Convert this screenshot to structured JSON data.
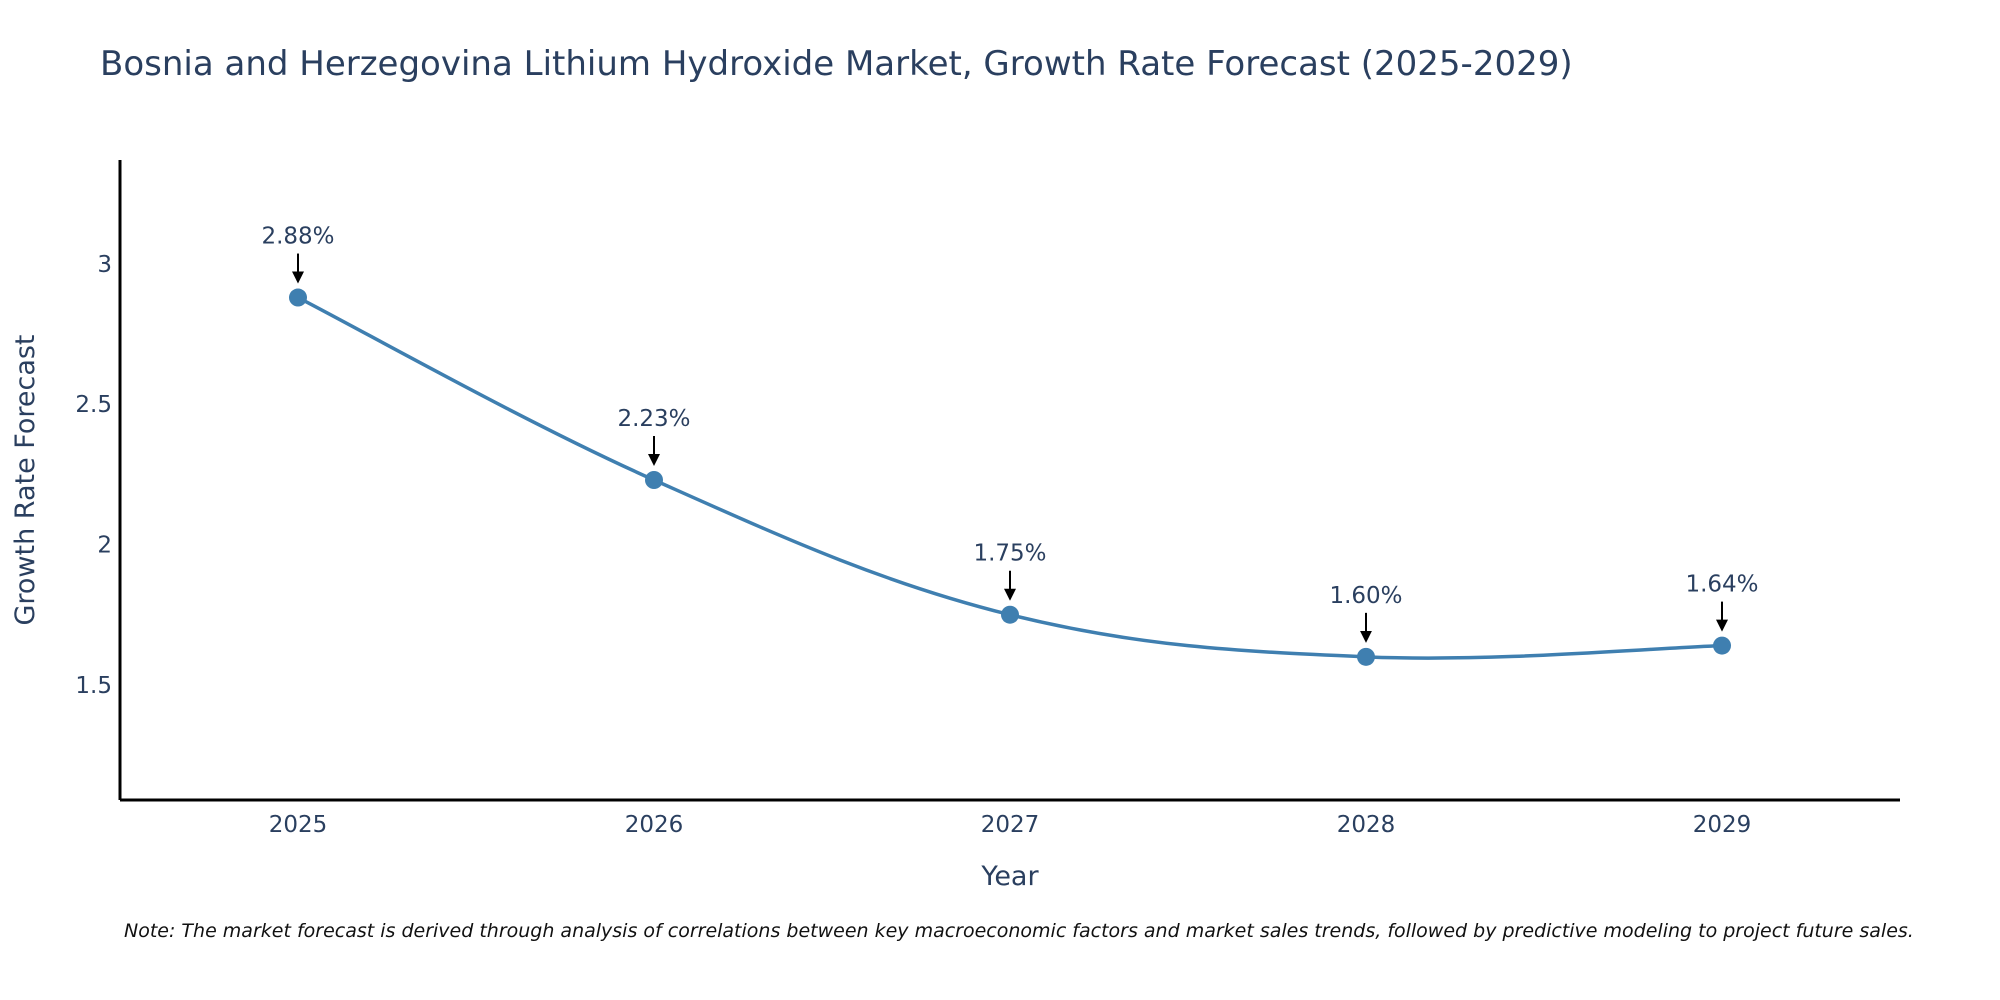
{
  "chart_data": {
    "type": "line",
    "title": "Bosnia and Herzegovina Lithium Hydroxide Market, Growth Rate Forecast (2025-2029)",
    "xlabel": "Year",
    "ylabel": "Growth Rate Forecast",
    "categories": [
      "2025",
      "2026",
      "2027",
      "2028",
      "2029"
    ],
    "series": [
      {
        "name": "Growth Rate Forecast",
        "values": [
          2.88,
          2.23,
          1.75,
          1.6,
          1.64
        ],
        "labels": [
          "2.88%",
          "2.23%",
          "1.75%",
          "1.60%",
          "1.64%"
        ],
        "color": "#3f7fb0"
      }
    ],
    "yticks": [
      "1.5",
      "2",
      "2.5",
      "3"
    ],
    "ylim": [
      1.09,
      3.37
    ],
    "grid": false,
    "axis_color": "#000000",
    "text_color": "#2a3f5f"
  },
  "note": "Note: The market forecast is derived through analysis of correlations between key macroeconomic factors and market sales trends, followed by predictive modeling to project future sales."
}
